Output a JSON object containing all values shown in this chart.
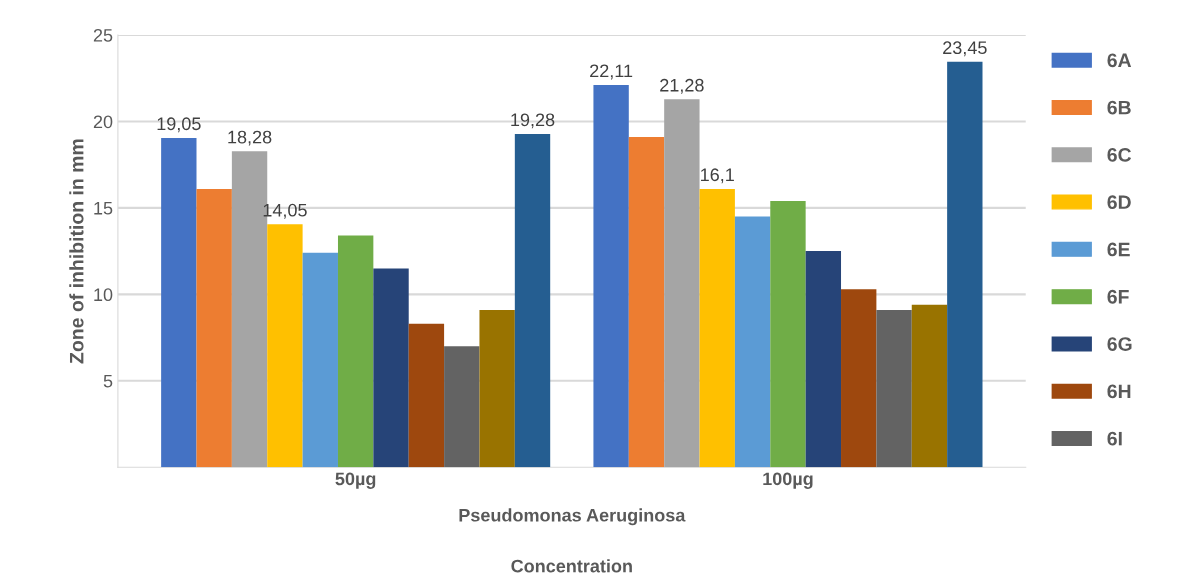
{
  "chart_data": {
    "type": "bar",
    "categories": [
      "50µg",
      "100µg"
    ],
    "xlabel": "Pseudomonas Aeruginosa",
    "ylabel": "Zone of inhibition in mm",
    "annotations": [
      "Concentration"
    ],
    "ylim": [
      0,
      25
    ],
    "yticks": [
      5,
      10,
      15,
      20,
      25
    ],
    "grid": "y",
    "legend": "right",
    "series": [
      {
        "name": "6A",
        "color": "#4472c4",
        "values": [
          19.05,
          22.11
        ],
        "value_labels": [
          "19,05",
          "22,11"
        ]
      },
      {
        "name": "6B",
        "color": "#ed7d31",
        "values": [
          16.1,
          19.1
        ]
      },
      {
        "name": "6C",
        "color": "#a5a5a5",
        "values": [
          18.28,
          21.28
        ],
        "value_labels": [
          "18,28",
          "21,28"
        ]
      },
      {
        "name": "6D",
        "color": "#ffc000",
        "values": [
          14.05,
          16.1
        ],
        "value_labels": [
          "14,05",
          "16,1"
        ]
      },
      {
        "name": "6E",
        "color": "#5b9bd5",
        "values": [
          12.4,
          14.5
        ]
      },
      {
        "name": "6F",
        "color": "#70ad47",
        "values": [
          13.4,
          15.4
        ]
      },
      {
        "name": "6G",
        "color": "#264478",
        "values": [
          11.5,
          12.5
        ]
      },
      {
        "name": "6H",
        "color": "#9e480e",
        "values": [
          8.3,
          10.3
        ]
      },
      {
        "name": "6I",
        "color": "#636363",
        "values": [
          7.0,
          9.1
        ]
      },
      {
        "color": "#997300",
        "values": [
          9.1,
          9.4
        ]
      },
      {
        "color": "#255e91",
        "values": [
          19.28,
          23.45
        ],
        "value_labels": [
          "19,28",
          "23,45"
        ]
      }
    ]
  }
}
